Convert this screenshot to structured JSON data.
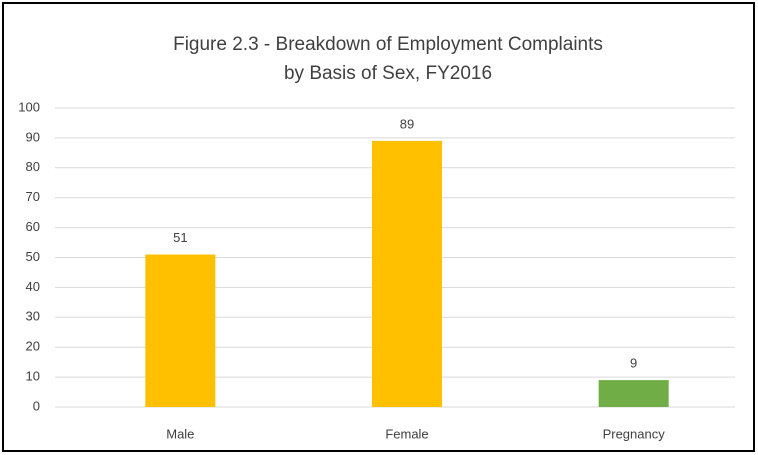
{
  "chart_data": {
    "type": "bar",
    "title": [
      "Figure 2.3 - Breakdown of Employment Complaints",
      "by Basis of Sex, FY2016"
    ],
    "categories": [
      "Male",
      "Female",
      "Pregnancy"
    ],
    "values": [
      51,
      89,
      9
    ],
    "colors": [
      "#ffc000",
      "#ffc000",
      "#70ad47"
    ],
    "ylim": [
      0,
      100
    ],
    "yticks": [
      0,
      10,
      20,
      30,
      40,
      50,
      60,
      70,
      80,
      90,
      100
    ],
    "grid": true,
    "data_labels": true
  }
}
